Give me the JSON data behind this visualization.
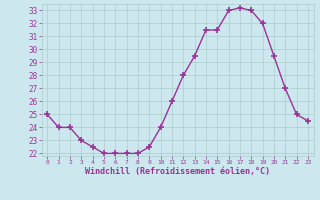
{
  "x": [
    0,
    1,
    2,
    3,
    4,
    5,
    6,
    7,
    8,
    9,
    10,
    11,
    12,
    13,
    14,
    15,
    16,
    17,
    18,
    19,
    20,
    21,
    22,
    23
  ],
  "y": [
    25.0,
    24.0,
    24.0,
    23.0,
    22.5,
    22.0,
    22.0,
    22.0,
    22.0,
    22.5,
    24.0,
    26.0,
    28.0,
    29.5,
    31.5,
    31.5,
    33.0,
    33.2,
    33.0,
    32.0,
    29.5,
    27.0,
    25.0,
    24.5
  ],
  "line_color": "#993399",
  "marker": "+",
  "marker_size": 4,
  "marker_lw": 1.2,
  "bg_color": "#cce8ee",
  "grid_color": "#aacccc",
  "xlabel": "Windchill (Refroidissement éolien,°C)",
  "xlabel_color": "#993399",
  "tick_label_color": "#993399",
  "ylim": [
    21.8,
    33.5
  ],
  "yticks": [
    22,
    23,
    24,
    25,
    26,
    27,
    28,
    29,
    30,
    31,
    32,
    33
  ],
  "xlim": [
    -0.5,
    23.5
  ],
  "linewidth": 1.0
}
